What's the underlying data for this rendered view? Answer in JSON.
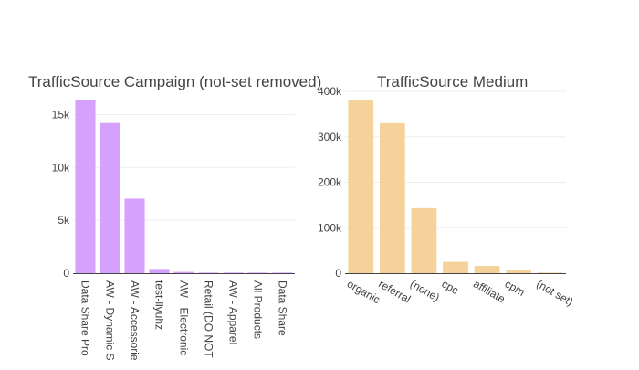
{
  "chart_data": [
    {
      "type": "bar",
      "title": "TrafficSource Campaign (not-set removed)",
      "xlabel": "",
      "ylabel": "",
      "categories": [
        "Data Share Promo",
        "AW - Dynamic Search Ads Whole Site",
        "AW - Accessories",
        "test-liyuhz",
        "AW - Electronics",
        "Retail (DO NOT EDIT)",
        "AW - Apparel",
        "All Products",
        "Data Share"
      ],
      "tick_labels": [
        "Data Share Pro",
        "AW - Dynamic S",
        "AW - Accessorie",
        "test-liyuhz",
        "AW - Electronic",
        "Retail (DO NOT",
        "AW - Apparel",
        "All Products",
        "Data Share"
      ],
      "values": [
        16400,
        14200,
        7050,
        400,
        120,
        40,
        20,
        10,
        5
      ],
      "ylim": [
        0,
        17200
      ],
      "yticks": [
        0,
        5000,
        10000,
        15000
      ],
      "ytick_labels": [
        "0",
        "5k",
        "10k",
        "15k"
      ],
      "color": "#d6a1fc",
      "grid": true,
      "tick_rotation": 90
    },
    {
      "type": "bar",
      "title": "TrafficSource Medium",
      "xlabel": "",
      "ylabel": "",
      "categories": [
        "organic",
        "referral",
        "(none)",
        "cpc",
        "affiliate",
        "cpm",
        "(not set)"
      ],
      "tick_labels": [
        "organic",
        "referral",
        "(none)",
        "cpc",
        "affiliate",
        "cpm",
        "(not set)"
      ],
      "values": [
        381000,
        330000,
        143000,
        25000,
        16000,
        6000,
        500
      ],
      "ylim": [
        0,
        400000
      ],
      "yticks": [
        0,
        100000,
        200000,
        300000,
        400000
      ],
      "ytick_labels": [
        "0",
        "100k",
        "200k",
        "300k",
        "400k"
      ],
      "color": "#f4d29a",
      "grid": true,
      "tick_rotation": 30
    }
  ]
}
